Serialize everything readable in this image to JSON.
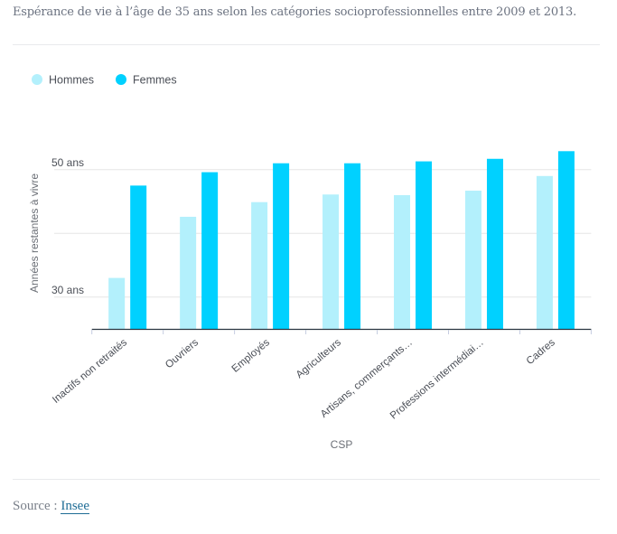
{
  "subtitle": "Espérance de vie à l’âge de 35 ans selon les catégories socioprofessionnelles entre 2009 et 2013.",
  "source": {
    "label": "Source :",
    "link_text": "Insee"
  },
  "colors": {
    "hommes": "#b3f0fc",
    "femmes": "#00d1ff",
    "grid": "#e6e6e6",
    "axis": "#2a3540",
    "tick": "#c5cce0",
    "text": "#4b4f57"
  },
  "chart_data": {
    "type": "bar",
    "title": "Espérance de vie à l’âge de 35 ans selon les catégories socioprofessionnelles entre 2009 et 2013.",
    "xlabel": "CSP",
    "ylabel": "Années restantes à vivre",
    "ylim": [
      25,
      55
    ],
    "grid": true,
    "legend_position": "top-left",
    "y_ticks": [
      {
        "value": 30,
        "label": "30 ans"
      },
      {
        "value": 40,
        "label": ""
      },
      {
        "value": 50,
        "label": "50 ans"
      }
    ],
    "categories": [
      "Inactifs non retraités",
      "Ouvriers",
      "Employés",
      "Agriculteurs",
      "Artisans, commerçants…",
      "Professions intermédiai…",
      "Cadres"
    ],
    "series": [
      {
        "name": "Hommes",
        "color": "#b3f0fc",
        "values": [
          33.0,
          42.6,
          44.9,
          46.1,
          46.0,
          46.7,
          49.0
        ]
      },
      {
        "name": "Femmes",
        "color": "#00d1ff",
        "values": [
          47.5,
          49.6,
          51.0,
          51.0,
          51.3,
          51.7,
          52.9
        ]
      }
    ]
  }
}
